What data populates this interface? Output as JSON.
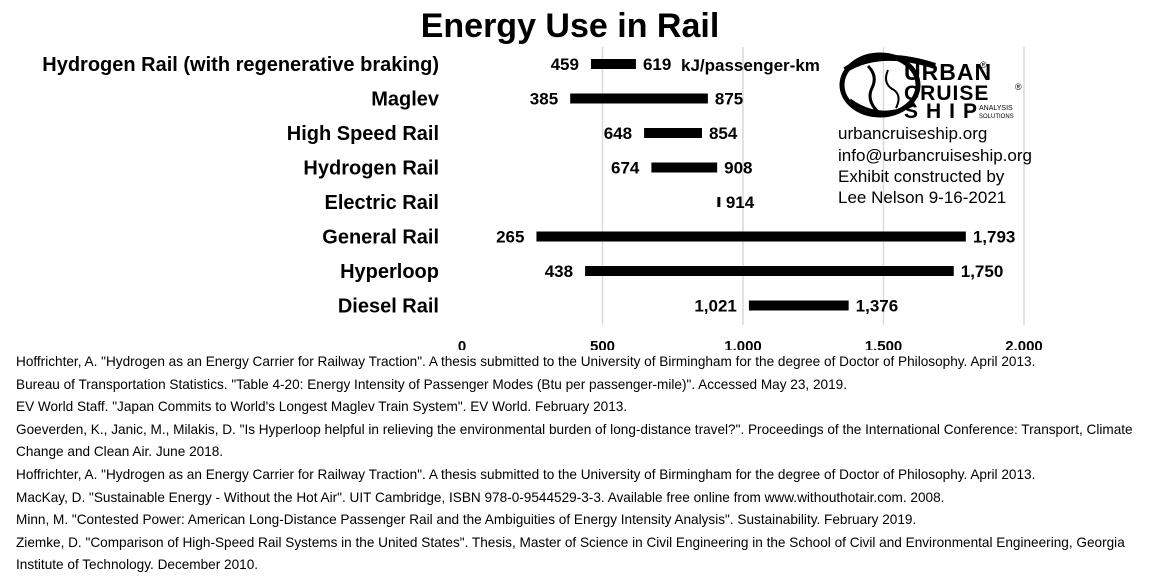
{
  "chart_data": {
    "type": "bar",
    "subtype": "floating-range",
    "orientation": "horizontal",
    "title": "Energy Use in Rail",
    "unit_label": "kJ/passenger-km",
    "categories": [
      "Hydrogen Rail (with regenerative braking)",
      "Maglev",
      "High Speed Rail",
      "Hydrogen Rail",
      "Electric Rail",
      "General Rail",
      "Hyperloop",
      "Diesel Rail"
    ],
    "series": [
      {
        "name": "",
        "low": [
          459,
          385,
          648,
          674,
          914,
          265,
          438,
          1021
        ],
        "high": [
          619,
          875,
          854,
          908,
          914,
          1793,
          1750,
          1376
        ]
      }
    ],
    "low_labels": [
      "459",
      "385",
      "648",
      "674",
      "",
      "265",
      "438",
      "1,021"
    ],
    "high_labels": [
      "619",
      "875",
      "854",
      "908",
      "914",
      "1,793",
      "1,750",
      "1,376"
    ],
    "xlim": [
      0,
      2000
    ],
    "xticks": [
      0,
      500,
      1000,
      1500,
      2000
    ],
    "xtick_labels": [
      "0",
      "500",
      "1,000",
      "1,500",
      "2,000"
    ],
    "grid": "vertical",
    "bar_color": "#000000",
    "grid_color": "#d9d9d9"
  },
  "logo": {
    "line1": "URBAN",
    "line2": "CRUISE",
    "line3": "SHIP",
    "tag1": "ANALYSIS",
    "tag2": "SOLUTIONS",
    "reg": "®"
  },
  "info": [
    "urbancruiseship.org",
    "info@urbancruiseship.org",
    "Exhibit constructed by",
    "Lee Nelson 9-16-2021"
  ],
  "references": [
    "Hoffrichter, A. \"Hydrogen as an Energy Carrier for Railway Traction\". A thesis submitted to the University of Birmingham for the degree of Doctor of Philosophy. April 2013.",
    "Bureau of Transportation Statistics. \"Table 4-20: Energy Intensity of Passenger Modes (Btu per passenger-mile)\". Accessed May 23, 2019.",
    "EV World Staff. \"Japan Commits to World's Longest Maglev Train System\". EV World. February 2013.",
    "Goeverden, K., Janic, M., Milakis, D. \"Is Hyperloop helpful in relieving the environmental burden of long-distance travel?\". Proceedings of the International Conference: Transport, Climate Change and Clean Air. June 2018.",
    "Hoffrichter, A. \"Hydrogen as an Energy Carrier for Railway Traction\". A thesis submitted to the University of Birmingham for the degree of Doctor of Philosophy. April 2013.",
    "MacKay, D. \"Sustainable Energy - Without the Hot Air\". UIT Cambridge, ISBN 978-0-9544529-3-3. Available free online from www.withouthotair.com. 2008.",
    "Minn, M. \"Contested Power: American Long-Distance Passenger Rail and the Ambiguities of Energy Intensity Analysis\". Sustainability. February 2019.",
    "Ziemke, D. \"Comparison of High-Speed Rail Systems in the United States\". Thesis, Master of Science in Civil Engineering in the School of Civil and Environmental Engineering, Georgia Institute of Technology. December 2010."
  ]
}
